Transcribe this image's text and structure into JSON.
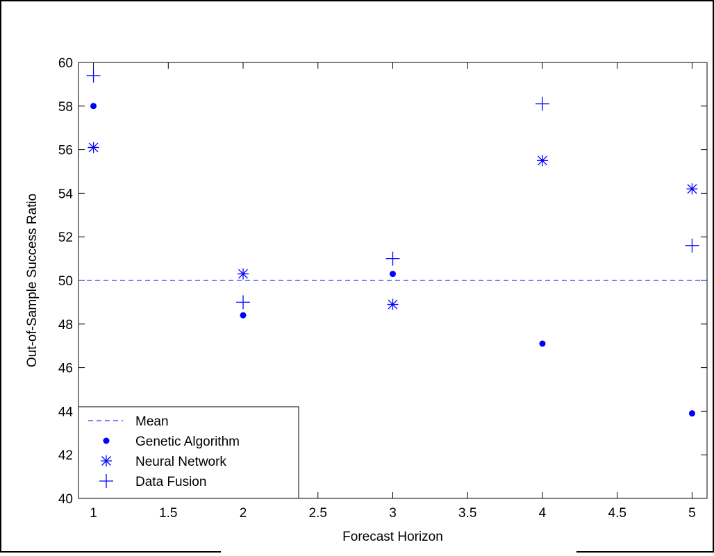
{
  "chart_data": {
    "type": "scatter",
    "title": "",
    "xlabel": "Forecast Horizon",
    "ylabel": "Out-of-Sample Success Ratio",
    "xlim": [
      0.9,
      5.1
    ],
    "ylim": [
      40,
      60
    ],
    "xticks": [
      "1",
      "1.5",
      "2",
      "2.5",
      "3",
      "3.5",
      "4",
      "4.5",
      "5"
    ],
    "yticks": [
      "40",
      "42",
      "44",
      "46",
      "48",
      "50",
      "52",
      "54",
      "56",
      "58",
      "60"
    ],
    "grid": false,
    "legend_position": "bottom-left",
    "color": "#0000ff",
    "mean_line": {
      "name": "Mean",
      "y": 50,
      "style": "dashed"
    },
    "series": [
      {
        "name": "Genetic Algorithm",
        "marker": "dot",
        "x": [
          1,
          2,
          3,
          4,
          5
        ],
        "y": [
          58.0,
          48.4,
          50.3,
          47.1,
          43.9
        ]
      },
      {
        "name": "Neural Network",
        "marker": "asterisk",
        "x": [
          1,
          2,
          3,
          4,
          5
        ],
        "y": [
          56.1,
          50.3,
          48.9,
          55.5,
          54.2
        ]
      },
      {
        "name": "Data Fusion",
        "marker": "plus",
        "x": [
          1,
          2,
          3,
          4,
          5
        ],
        "y": [
          59.4,
          49.0,
          51.0,
          58.1,
          51.6
        ]
      }
    ]
  }
}
